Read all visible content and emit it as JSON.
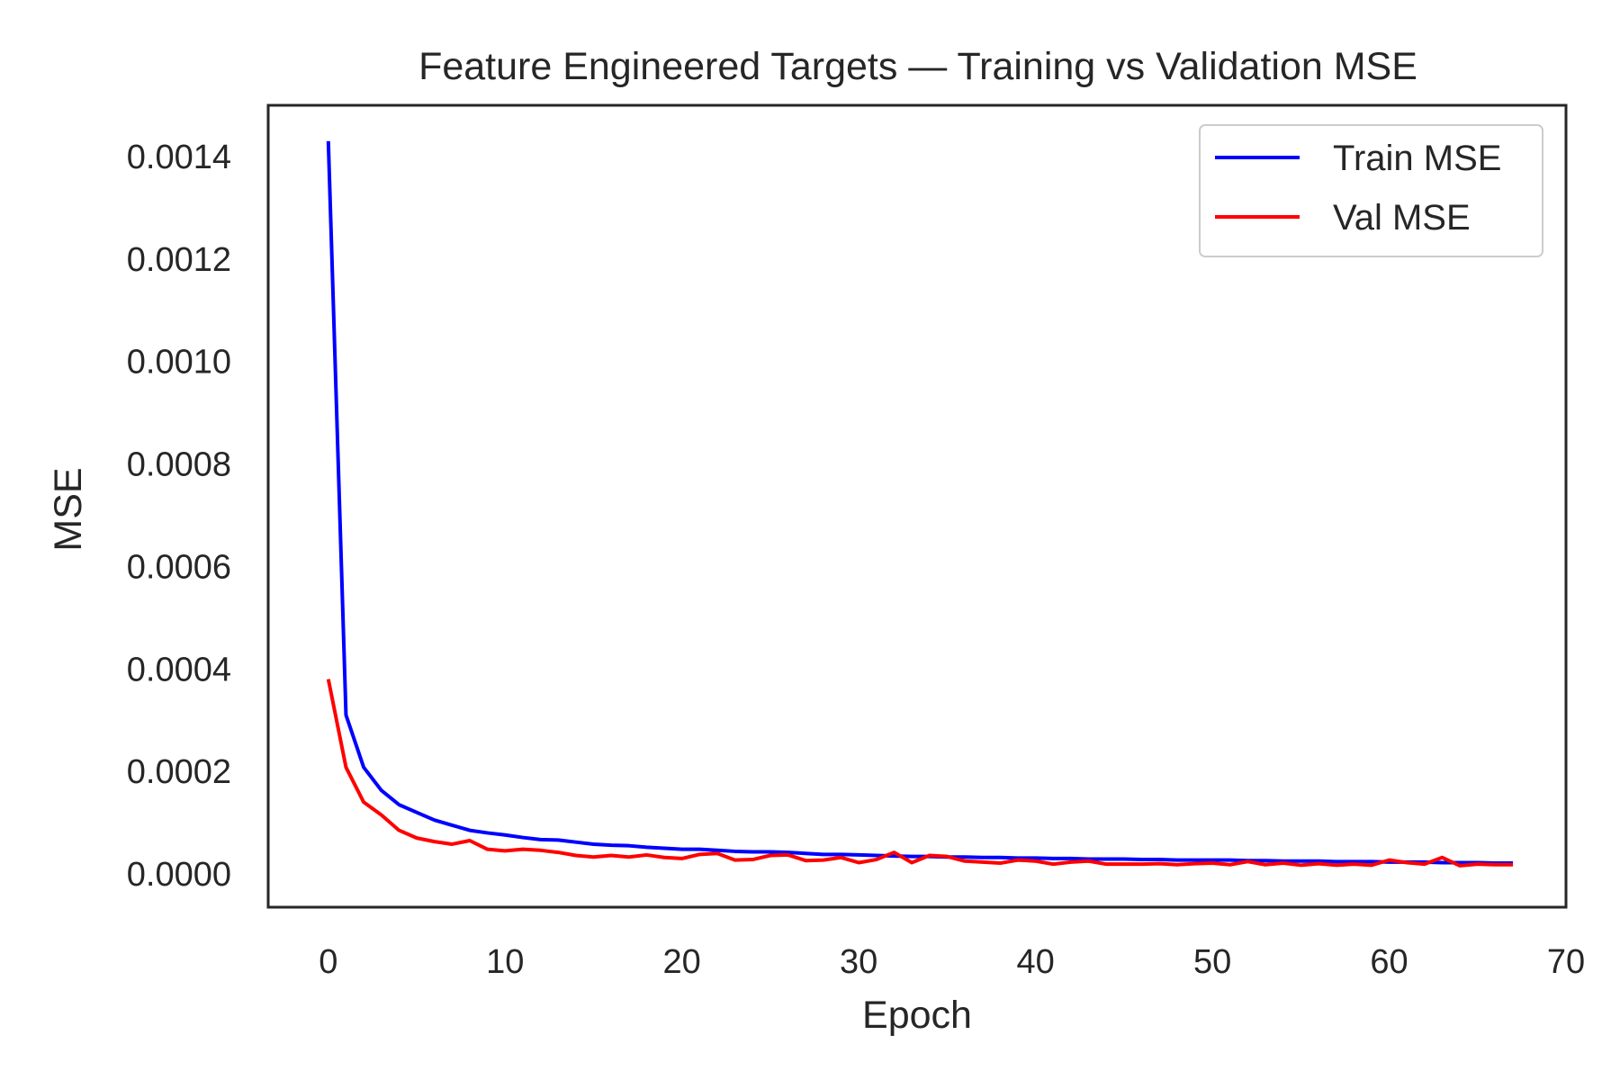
{
  "chart_data": {
    "type": "line",
    "title": "Feature Engineered Targets — Training vs Validation MSE",
    "xlabel": "Epoch",
    "ylabel": "MSE",
    "xlim": [
      -3.4,
      70
    ],
    "ylim": [
      -6.5e-05,
      0.0015
    ],
    "xticks": [
      0,
      10,
      20,
      30,
      40,
      50,
      60,
      70
    ],
    "xtick_labels": [
      "0",
      "10",
      "20",
      "30",
      "40",
      "50",
      "60",
      "70"
    ],
    "yticks": [
      0.0,
      0.0002,
      0.0004,
      0.0006,
      0.0008,
      0.001,
      0.0012,
      0.0014
    ],
    "ytick_labels": [
      "0.0000",
      "0.0002",
      "0.0004",
      "0.0006",
      "0.0008",
      "0.0010",
      "0.0012",
      "0.0014"
    ],
    "grid": false,
    "legend_position": "top-right",
    "x": [
      0,
      1,
      2,
      3,
      4,
      5,
      6,
      7,
      8,
      9,
      10,
      11,
      12,
      13,
      14,
      15,
      16,
      17,
      18,
      19,
      20,
      21,
      22,
      23,
      24,
      25,
      26,
      27,
      28,
      29,
      30,
      31,
      32,
      33,
      34,
      35,
      36,
      37,
      38,
      39,
      40,
      41,
      42,
      43,
      44,
      45,
      46,
      47,
      48,
      49,
      50,
      51,
      52,
      53,
      54,
      55,
      56,
      57,
      58,
      59,
      60,
      61,
      62,
      63,
      64,
      65,
      66,
      67
    ],
    "series": [
      {
        "name": "Train MSE",
        "color": "#0000ff",
        "values": [
          0.00143,
          0.00031,
          0.000208,
          0.000163,
          0.000135,
          0.00012,
          0.000105,
          9.5e-05,
          8.5e-05,
          8e-05,
          7.6e-05,
          7.1e-05,
          6.7e-05,
          6.6e-05,
          6.2e-05,
          5.8e-05,
          5.6e-05,
          5.5e-05,
          5.2e-05,
          5e-05,
          4.8e-05,
          4.8e-05,
          4.6e-05,
          4.4e-05,
          4.3e-05,
          4.3e-05,
          4.2e-05,
          4e-05,
          3.8e-05,
          3.8e-05,
          3.7e-05,
          3.6e-05,
          3.5e-05,
          3.4e-05,
          3.4e-05,
          3.3e-05,
          3.3e-05,
          3.2e-05,
          3.2e-05,
          3.1e-05,
          3.1e-05,
          3e-05,
          3e-05,
          2.9e-05,
          2.9e-05,
          2.9e-05,
          2.8e-05,
          2.8e-05,
          2.7e-05,
          2.7e-05,
          2.7e-05,
          2.7e-05,
          2.6e-05,
          2.6e-05,
          2.5e-05,
          2.5e-05,
          2.5e-05,
          2.4e-05,
          2.4e-05,
          2.4e-05,
          2.3e-05,
          2.3e-05,
          2.3e-05,
          2.2e-05,
          2.2e-05,
          2.2e-05,
          2.1e-05,
          2.1e-05
        ]
      },
      {
        "name": "Val MSE",
        "color": "#ff0000",
        "values": [
          0.00038,
          0.000208,
          0.00014,
          0.000115,
          8.5e-05,
          7e-05,
          6.3e-05,
          5.8e-05,
          6.5e-05,
          4.8e-05,
          4.5e-05,
          4.8e-05,
          4.6e-05,
          4.2e-05,
          3.6e-05,
          3.3e-05,
          3.6e-05,
          3.3e-05,
          3.7e-05,
          3.2e-05,
          3e-05,
          3.8e-05,
          4e-05,
          2.7e-05,
          2.8e-05,
          3.6e-05,
          3.7e-05,
          2.6e-05,
          2.7e-05,
          3.2e-05,
          2.2e-05,
          2.8e-05,
          4.2e-05,
          2.2e-05,
          3.6e-05,
          3.4e-05,
          2.5e-05,
          2.3e-05,
          2.1e-05,
          2.7e-05,
          2.5e-05,
          1.9e-05,
          2.3e-05,
          2.5e-05,
          1.9e-05,
          1.9e-05,
          1.9e-05,
          2e-05,
          1.8e-05,
          2e-05,
          2.1e-05,
          1.8e-05,
          2.4e-05,
          1.8e-05,
          2.1e-05,
          1.7e-05,
          2e-05,
          1.7e-05,
          1.9e-05,
          1.7e-05,
          2.7e-05,
          2.2e-05,
          1.9e-05,
          3.2e-05,
          1.6e-05,
          1.9e-05,
          1.8e-05,
          1.8e-05
        ]
      }
    ]
  }
}
